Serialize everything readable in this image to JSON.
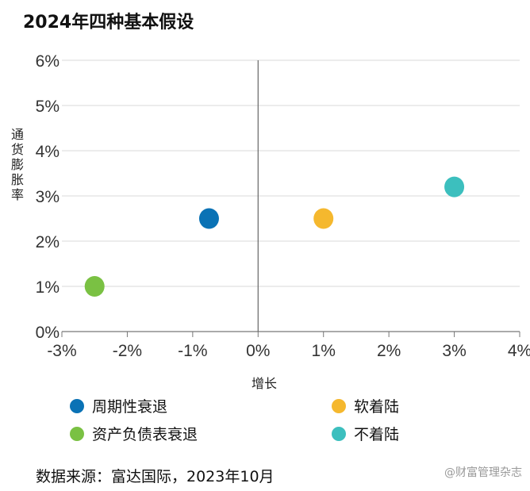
{
  "title": "2024年四种基本假设",
  "chart_data": {
    "type": "scatter",
    "xlabel": "增长",
    "ylabel": "通货膨胀率",
    "xlim": [
      -3,
      4
    ],
    "ylim": [
      0,
      6
    ],
    "x_ticks": [
      "-3%",
      "-2%",
      "-1%",
      "0%",
      "1%",
      "2%",
      "3%",
      "4%"
    ],
    "y_ticks": [
      "0%",
      "1%",
      "2%",
      "3%",
      "4%",
      "5%",
      "6%"
    ],
    "grid": true,
    "points": [
      {
        "name": "周期性衰退",
        "x": -0.75,
        "y": 2.5,
        "color": "#0a72b5"
      },
      {
        "name": "资产负债表衰退",
        "x": -2.5,
        "y": 1.0,
        "color": "#7ac143"
      },
      {
        "name": "软着陆",
        "x": 1.0,
        "y": 2.5,
        "color": "#f5b82e"
      },
      {
        "name": "不着陆",
        "x": 3.0,
        "y": 3.2,
        "color": "#3cbfbe"
      }
    ]
  },
  "legend": [
    {
      "label": "周期性衰退",
      "color": "#0a72b5"
    },
    {
      "label": "软着陆",
      "color": "#f5b82e"
    },
    {
      "label": "资产负债表衰退",
      "color": "#7ac143"
    },
    {
      "label": "不着陆",
      "color": "#3cbfbe"
    }
  ],
  "source": "数据来源：富达国际，2023年10月",
  "watermark": "@财富管理杂志"
}
